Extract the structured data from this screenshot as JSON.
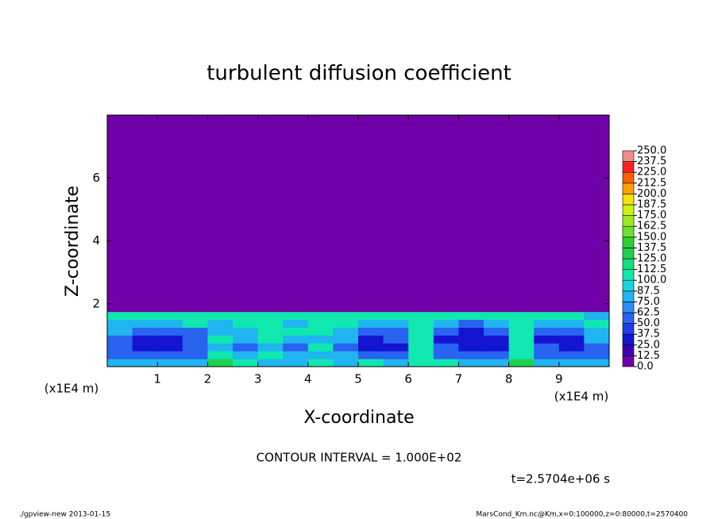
{
  "chart_data": {
    "type": "heatmap",
    "title": "turbulent diffusion coefficient",
    "x_label": "X-coordinate",
    "y_label": "Z-coordinate",
    "x_unit_label": "(x1E4 m)",
    "y_unit_label": "(x1E4 m)",
    "xlim": [
      0,
      10
    ],
    "ylim": [
      0,
      8
    ],
    "xticks": [
      1,
      2,
      3,
      4,
      5,
      6,
      7,
      8,
      9
    ],
    "yticks": [
      2,
      4,
      6
    ],
    "xbins": [
      0,
      0.5,
      1,
      1.5,
      2,
      2.5,
      3,
      3.5,
      4,
      4.5,
      5,
      5.5,
      6,
      6.5,
      7,
      7.5,
      8,
      8.5,
      9,
      9.5,
      10
    ],
    "ybins": [
      0,
      0.25,
      0.5,
      0.75,
      1,
      1.25,
      1.5,
      1.75,
      2,
      8
    ],
    "values": [
      [
        75,
        87,
        75,
        87,
        125,
        112,
        87,
        87,
        100,
        87,
        100,
        87,
        112,
        100,
        87,
        75,
        125,
        87,
        75,
        75
      ],
      [
        62,
        50,
        50,
        62,
        100,
        87,
        100,
        75,
        87,
        75,
        62,
        62,
        100,
        62,
        50,
        50,
        112,
        62,
        50,
        62
      ],
      [
        50,
        37,
        37,
        50,
        87,
        50,
        87,
        62,
        100,
        62,
        37,
        37,
        100,
        50,
        25,
        37,
        100,
        50,
        37,
        62
      ],
      [
        62,
        37,
        37,
        50,
        100,
        75,
        100,
        75,
        87,
        75,
        37,
        50,
        112,
        37,
        25,
        37,
        100,
        37,
        37,
        75
      ],
      [
        75,
        50,
        50,
        62,
        87,
        87,
        100,
        100,
        100,
        75,
        50,
        62,
        112,
        50,
        37,
        50,
        100,
        50,
        50,
        87
      ],
      [
        87,
        75,
        75,
        100,
        87,
        100,
        112,
        87,
        100,
        100,
        75,
        87,
        100,
        75,
        62,
        75,
        100,
        75,
        75,
        100
      ],
      [
        100,
        100,
        112,
        100,
        100,
        100,
        100,
        100,
        100,
        100,
        100,
        112,
        100,
        100,
        100,
        100,
        100,
        100,
        100,
        87
      ],
      [
        0,
        0,
        0,
        0,
        0,
        0,
        0,
        0,
        0,
        0,
        0,
        0,
        0,
        0,
        0,
        0,
        0,
        0,
        0,
        0
      ],
      [
        0,
        0,
        0,
        0,
        0,
        0,
        0,
        0,
        0,
        0,
        0,
        0,
        0,
        0,
        0,
        0,
        0,
        0,
        0,
        0
      ]
    ],
    "colorbar": {
      "ticks": [
        {
          "value": 0,
          "label": "0.0"
        },
        12.5,
        {
          "value": 25,
          "label": "25.0"
        },
        37.5,
        {
          "value": 50,
          "label": "50.0"
        },
        62.5,
        {
          "value": 75,
          "label": "75.0"
        },
        87.5,
        {
          "value": 100,
          "label": "100.0"
        },
        112.5,
        {
          "value": 125,
          "label": "125.0"
        },
        137.5,
        {
          "value": 150,
          "label": "150.0"
        },
        162.5,
        {
          "value": 175,
          "label": "175.0"
        },
        187.5,
        {
          "value": 200,
          "label": "200.0"
        },
        212.5,
        {
          "value": 225,
          "label": "225.0"
        },
        237.5,
        {
          "value": 250,
          "label": "250.0"
        }
      ],
      "colors": [
        "#7000a8",
        "#3c00b4",
        "#1414d2",
        "#1e3ce8",
        "#2864f0",
        "#2f8cf5",
        "#20b4f0",
        "#18d6e0",
        "#10e8b0",
        "#10e080",
        "#20d050",
        "#30d030",
        "#70e030",
        "#a0e820",
        "#d0f010",
        "#f8e000",
        "#ffa000",
        "#ff6000",
        "#ff2020",
        "#f08c8c"
      ]
    },
    "annotations": {
      "contour_interval": "CONTOUR INTERVAL = 1.000E+02",
      "time": "t=2.5704e+06 s",
      "program": "./gpview-new  2013-01-15",
      "source": "MarsCond_Km.nc@Km,x=0:100000,z=0:80000,t=2570400"
    }
  }
}
